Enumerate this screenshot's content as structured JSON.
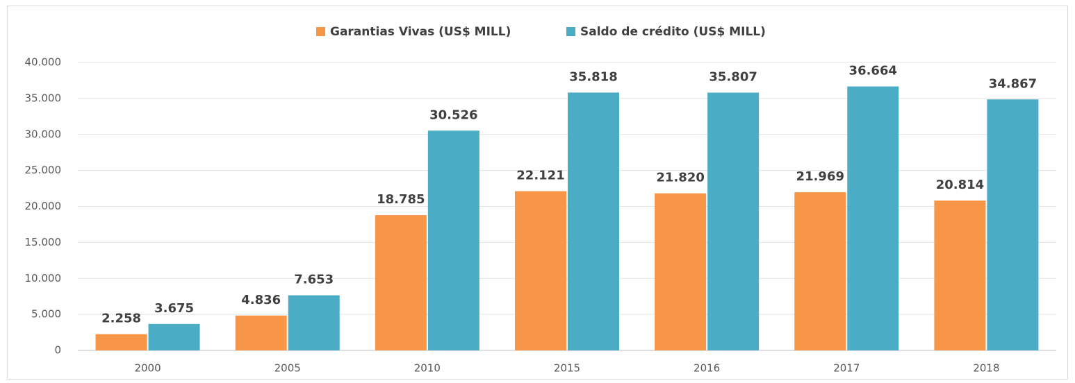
{
  "chart_data": {
    "type": "bar",
    "categories": [
      "2000",
      "2005",
      "2010",
      "2015",
      "2016",
      "2017",
      "2018"
    ],
    "series": [
      {
        "name": "Garantias Vivas (US$ MILL)",
        "color": "#f79646",
        "values": [
          2258,
          4836,
          18785,
          22121,
          21820,
          21969,
          20814
        ],
        "value_labels": [
          "2.258",
          "4.836",
          "18.785",
          "22.121",
          "21.820",
          "21.969",
          "20.814"
        ]
      },
      {
        "name": "Saldo de crédito (US$ MILL)",
        "color": "#4bacc6",
        "values": [
          3675,
          7653,
          30526,
          35818,
          35807,
          36664,
          34867
        ],
        "value_labels": [
          "3.675",
          "7.653",
          "30.526",
          "35.818",
          "35.807",
          "36.664",
          "34.867"
        ]
      }
    ],
    "ylim": [
      0,
      40000
    ],
    "yticks": [
      0,
      {
        "value": 5000,
        "label": "5.000"
      },
      {
        "value": 10000,
        "label": "10.000"
      },
      {
        "value": 15000,
        "label": "15.000"
      },
      {
        "value": 20000,
        "label": "20.000"
      },
      {
        "value": 25000,
        "label": "25.000"
      },
      {
        "value": 30000,
        "label": "30.000"
      },
      {
        "value": 35000,
        "label": "35.000"
      },
      {
        "value": 40000,
        "label": "40.000"
      }
    ],
    "grid": true,
    "legend": "top"
  }
}
